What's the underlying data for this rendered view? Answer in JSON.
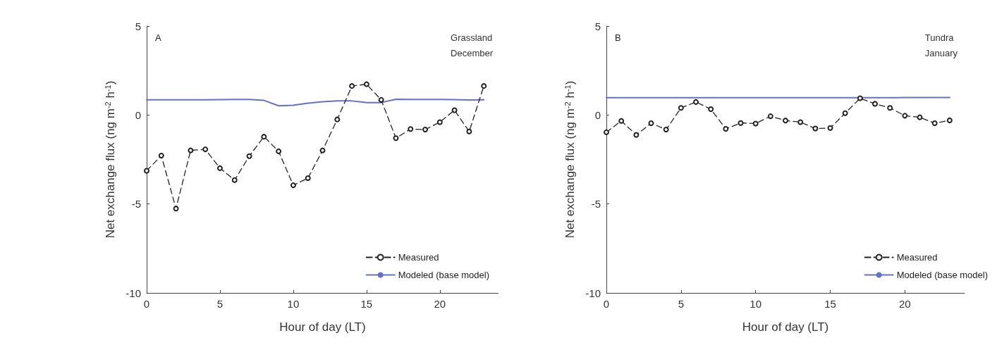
{
  "chart_data": [
    {
      "type": "line",
      "xlabel": "Hour of day (LT)",
      "ylabel": "Net exchange flux (ng m$^{-2}$ h$^{-1}$)",
      "annotations": [
        "A",
        "Grassland\nDecember"
      ],
      "xlim": [
        0,
        24
      ],
      "xticks": [
        0,
        5,
        10,
        15,
        20
      ],
      "ylim": [
        -10,
        5
      ],
      "yticks": [
        -10,
        -5,
        0,
        5
      ],
      "grid": false,
      "legend": "bottom right",
      "x": [
        0,
        1,
        2,
        3,
        4,
        5,
        6,
        7,
        8,
        9,
        10,
        11,
        12,
        13,
        14,
        15,
        16,
        17,
        18,
        19,
        20,
        21,
        22,
        23
      ],
      "series": [
        {
          "name": "Measured",
          "color": "#222222",
          "marker": "circle",
          "line_style": "dashed",
          "values": [
            -3.13,
            -2.28,
            -5.26,
            -1.99,
            -1.93,
            -2.99,
            -3.66,
            -2.31,
            -1.22,
            -2.04,
            -3.95,
            -3.55,
            -1.99,
            -0.25,
            1.63,
            1.73,
            0.85,
            -1.3,
            -0.79,
            -0.82,
            -0.4,
            0.27,
            -0.93,
            1.63
          ]
        },
        {
          "name": "Modeled (base model)",
          "color": "#6670c8",
          "marker": "none",
          "line_style": "solid",
          "values": [
            0.85,
            0.85,
            0.85,
            0.85,
            0.85,
            0.86,
            0.87,
            0.87,
            0.82,
            0.52,
            0.55,
            0.67,
            0.75,
            0.79,
            0.79,
            0.7,
            0.7,
            0.88,
            0.87,
            0.87,
            0.87,
            0.86,
            0.84,
            0.85
          ]
        }
      ]
    },
    {
      "type": "line",
      "xlabel": "Hour of day (LT)",
      "ylabel": "Net exchange flux (ng m$^{-2}$ h$^{-1}$)",
      "annotations": [
        "B",
        "Tundra\nJanuary"
      ],
      "xlim": [
        0,
        24
      ],
      "xticks": [
        0,
        5,
        10,
        15,
        20
      ],
      "ylim": [
        -10,
        5
      ],
      "yticks": [
        -10,
        -5,
        0,
        5
      ],
      "grid": false,
      "legend": "bottom right",
      "x": [
        0,
        1,
        2,
        3,
        4,
        5,
        6,
        7,
        8,
        9,
        10,
        11,
        12,
        13,
        14,
        15,
        16,
        17,
        18,
        19,
        20,
        21,
        22,
        23
      ],
      "series": [
        {
          "name": "Measured",
          "color": "#222222",
          "marker": "circle",
          "line_style": "dashed",
          "values": [
            -0.97,
            -0.33,
            -1.12,
            -0.46,
            -0.82,
            0.4,
            0.73,
            0.33,
            -0.78,
            -0.45,
            -0.48,
            -0.07,
            -0.31,
            -0.4,
            -0.76,
            -0.73,
            0.1,
            0.94,
            0.63,
            0.4,
            -0.04,
            -0.13,
            -0.46,
            -0.3
          ]
        },
        {
          "name": "Modeled (base model)",
          "color": "#6670c8",
          "marker": "none",
          "line_style": "solid",
          "values": [
            0.97,
            0.97,
            0.97,
            0.97,
            0.97,
            0.97,
            0.97,
            0.97,
            0.97,
            0.97,
            0.97,
            0.97,
            0.97,
            0.97,
            0.97,
            0.97,
            0.97,
            0.97,
            0.97,
            0.97,
            0.98,
            0.98,
            0.98,
            0.98
          ]
        }
      ]
    }
  ]
}
